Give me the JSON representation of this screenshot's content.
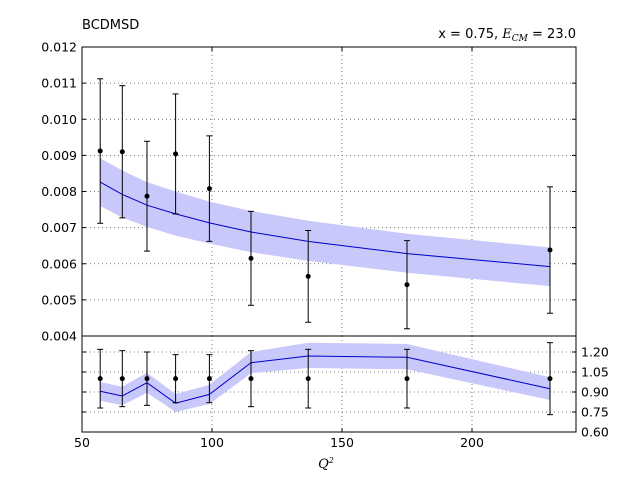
{
  "chart_data": [
    {
      "type": "scatter",
      "title_left": "BCDMSD",
      "title_right_prefix": "x = 0.75, ",
      "title_right_sym": "E",
      "title_right_sub": "CM",
      "title_right_suffix": " = 23.0",
      "ylim": [
        0.004,
        0.012
      ],
      "yticks": [
        "0.004",
        "0.005",
        "0.006",
        "0.007",
        "0.008",
        "0.009",
        "0.010",
        "0.011",
        "0.012"
      ],
      "grid": true,
      "data_points": {
        "x": [
          57,
          65.5,
          75,
          86,
          99,
          115,
          137,
          175,
          230
        ],
        "y": [
          0.00912,
          0.0091,
          0.00787,
          0.00904,
          0.00808,
          0.00615,
          0.00565,
          0.00542,
          0.00638
        ],
        "yerr": [
          0.002,
          0.00183,
          0.00152,
          0.00166,
          0.00146,
          0.0013,
          0.00127,
          0.00122,
          0.00175
        ]
      },
      "theory": {
        "x": [
          57,
          65.5,
          75,
          86,
          99,
          115,
          137,
          175,
          230
        ],
        "central": [
          0.00826,
          0.00792,
          0.00762,
          0.00738,
          0.00713,
          0.00688,
          0.00662,
          0.00628,
          0.00592
        ],
        "band_low": [
          0.0076,
          0.00728,
          0.00702,
          0.00678,
          0.00656,
          0.00632,
          0.00608,
          0.00575,
          0.00538
        ],
        "band_high": [
          0.00892,
          0.00858,
          0.00826,
          0.008,
          0.00772,
          0.00746,
          0.00719,
          0.00683,
          0.00645
        ]
      }
    },
    {
      "type": "scatter",
      "xlim": [
        50,
        240
      ],
      "ylim": [
        0.6,
        1.32
      ],
      "xticks": [
        "50",
        "100",
        "150",
        "200"
      ],
      "yticks": [
        "0.60",
        "0.75",
        "0.90",
        "1.05",
        "1.20"
      ],
      "xlabel_sym": "Q",
      "xlabel_sup": "2",
      "grid": true,
      "data_points": {
        "x": [
          57,
          65.5,
          75,
          86,
          99,
          115,
          137,
          175,
          230
        ],
        "y": [
          1.0,
          1.0,
          1.0,
          1.0,
          1.0,
          1.0,
          1.0,
          1.0,
          1.0
        ],
        "yerr": [
          0.22,
          0.21,
          0.2,
          0.18,
          0.18,
          0.21,
          0.22,
          0.22,
          0.27
        ]
      },
      "theory": {
        "x": [
          57,
          65.5,
          75,
          86,
          99,
          115,
          137,
          175,
          230
        ],
        "central": [
          0.905,
          0.87,
          0.97,
          0.816,
          0.882,
          1.12,
          1.17,
          1.16,
          0.925
        ],
        "band_low": [
          0.835,
          0.8,
          0.895,
          0.75,
          0.81,
          1.04,
          1.08,
          1.07,
          0.84
        ],
        "band_high": [
          0.975,
          0.94,
          1.045,
          0.884,
          0.955,
          1.2,
          1.27,
          1.26,
          1.01
        ]
      }
    }
  ],
  "colors": {
    "band": "#c8c8fa",
    "theory_line": "#0000cc",
    "points": "#000000",
    "grid": "#555555"
  }
}
